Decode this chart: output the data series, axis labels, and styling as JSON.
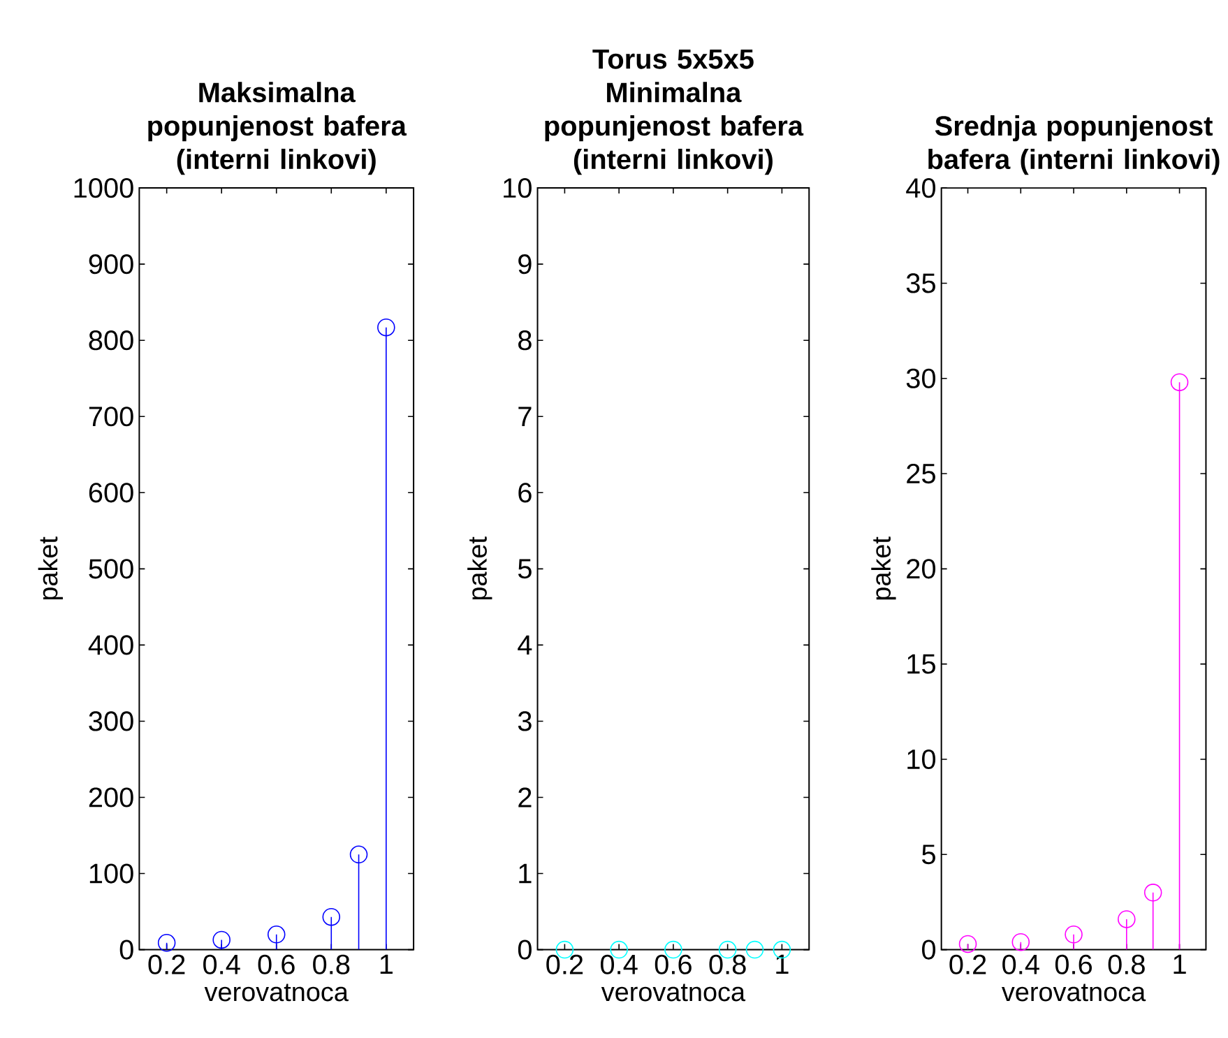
{
  "chart_data": [
    {
      "type": "lollipop",
      "title": "Maksimalna popunjenost bafera (interni linkovi)",
      "xlabel": "verovatnoca",
      "ylabel": "paket",
      "x": [
        0.2,
        0.4,
        0.6,
        0.8,
        0.9,
        1
      ],
      "values": [
        9,
        13,
        20,
        43,
        125,
        817
      ],
      "color": "#0000ff",
      "marker": "circle",
      "xlim": [
        0.1,
        1.1
      ],
      "xticks": [
        0.2,
        0.4,
        0.6,
        0.8,
        1
      ],
      "ylim": [
        0,
        1000
      ],
      "yticks": [
        0,
        100,
        200,
        300,
        400,
        500,
        600,
        700,
        800,
        900,
        1000
      ]
    },
    {
      "type": "lollipop",
      "title": "Torus 5x5x5",
      "subtitle": "Minimalna popunjenost bafera (interni linkovi)",
      "xlabel": "verovatnoca",
      "ylabel": "paket",
      "x": [
        0.2,
        0.4,
        0.6,
        0.8,
        0.9,
        1
      ],
      "values": [
        0,
        0,
        0,
        0,
        0,
        0
      ],
      "color": "#00ffff",
      "marker": "circle",
      "xlim": [
        0.1,
        1.1
      ],
      "xticks": [
        0.2,
        0.4,
        0.6,
        0.8,
        1
      ],
      "ylim": [
        0,
        10
      ],
      "yticks": [
        0,
        1,
        2,
        3,
        4,
        5,
        6,
        7,
        8,
        9,
        10
      ]
    },
    {
      "type": "lollipop",
      "title": "Srednja popunjenost bafera (interni linkovi)",
      "xlabel": "verovatnoca",
      "ylabel": "paket",
      "x": [
        0.2,
        0.4,
        0.6,
        0.8,
        0.9,
        1
      ],
      "values": [
        0.3,
        0.4,
        0.8,
        1.6,
        3.0,
        29.8
      ],
      "color": "#ff00ff",
      "marker": "circle",
      "xlim": [
        0.1,
        1.1
      ],
      "xticks": [
        0.2,
        0.4,
        0.6,
        0.8,
        1
      ],
      "ylim": [
        0,
        40
      ],
      "yticks": [
        0,
        5,
        10,
        15,
        20,
        25,
        30,
        35,
        40
      ]
    }
  ]
}
